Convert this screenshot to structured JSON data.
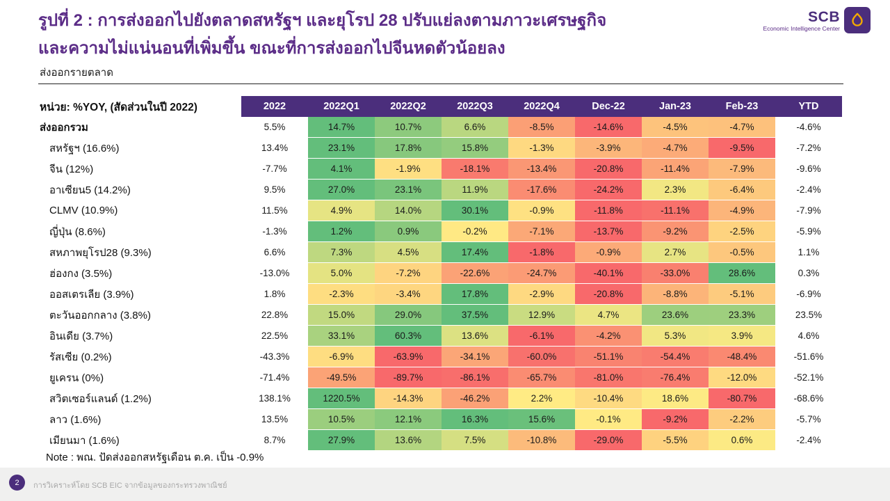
{
  "title": {
    "line1": "รูปที่ 2 : การส่งออกไปยังตลาดสหรัฐฯ และยุโรป 28 ปรับแย่ลงตามภาวะเศรษฐกิจ",
    "line2": "และความไม่แน่นอนที่เพิ่มขึ้น ขณะที่การส่งออกไปจีนหดตัวน้อยลง"
  },
  "logo": {
    "brand": "SCB",
    "tagline": "Economic Intelligence Center"
  },
  "subtitle": "ส่งออกรายตลาด",
  "unit_label": "หน่วย: %YOY, (สัดส่วนในปี 2022)",
  "note": "Note : พณ. ปัดส่งออกสหรัฐเดือน ต.ค. เป็น -0.9%",
  "footer": {
    "page_number": "2",
    "source": "การวิเคราะห์โดย SCB EIC จากข้อมูลของกระทรวงพาณิชย์"
  },
  "colors": {
    "accent_purple": "#5b2c87",
    "header_purple": "#4b2e7c",
    "heat_green": "#63be7b",
    "heat_yellow": "#ffeb84",
    "heat_red": "#f8696b",
    "gold": "#f2a900"
  },
  "chart_data": {
    "type": "heatmap",
    "title": "ส่งออกรายตลาด",
    "unit": "%YOY",
    "columns": [
      "2022",
      "2022Q1",
      "2022Q2",
      "2022Q3",
      "2022Q4",
      "Dec-22",
      "Jan-23",
      "Feb-23",
      "YTD"
    ],
    "heat_column_range": [
      1,
      7
    ],
    "color_scale": "per-row diverging, yellow at 0, green at row max positive, red at row min negative",
    "rows": [
      {
        "label": "ส่งออกรวม",
        "bold": true,
        "values": [
          5.5,
          14.7,
          10.7,
          6.6,
          -8.5,
          -14.6,
          -4.5,
          -4.7,
          -4.6
        ]
      },
      {
        "label": "สหรัฐฯ (16.6%)",
        "values": [
          13.4,
          23.1,
          17.8,
          15.8,
          -1.3,
          -3.9,
          -4.7,
          -9.5,
          -7.2
        ]
      },
      {
        "label": "จีน (12%)",
        "values": [
          -7.7,
          4.1,
          -1.9,
          -18.1,
          -13.4,
          -20.8,
          -11.4,
          -7.9,
          -9.6
        ]
      },
      {
        "label": "อาเซียน5 (14.2%)",
        "values": [
          9.5,
          27.0,
          23.1,
          11.9,
          -17.6,
          -24.2,
          2.3,
          -6.4,
          -2.4
        ]
      },
      {
        "label": "CLMV (10.9%)",
        "values": [
          11.5,
          4.9,
          14.0,
          30.1,
          -0.9,
          -11.8,
          -11.1,
          -4.9,
          -7.9
        ]
      },
      {
        "label": "ญี่ปุ่น (8.6%)",
        "values": [
          -1.3,
          1.2,
          0.9,
          -0.2,
          -7.1,
          -13.7,
          -9.2,
          -2.5,
          -5.9
        ]
      },
      {
        "label": "สหภาพยุโรป28 (9.3%)",
        "values": [
          6.6,
          7.3,
          4.5,
          17.4,
          -1.8,
          -0.9,
          2.7,
          -0.5,
          1.1
        ]
      },
      {
        "label": "ฮ่องกง (3.5%)",
        "values": [
          -13.0,
          5.0,
          -7.2,
          -22.6,
          -24.7,
          -40.1,
          -33.0,
          28.6,
          0.3
        ]
      },
      {
        "label": "ออสเตรเลีย (3.9%)",
        "values": [
          1.8,
          -2.3,
          -3.4,
          17.8,
          -2.9,
          -20.8,
          -8.8,
          -5.1,
          -6.9
        ]
      },
      {
        "label": "ตะวันออกกลาง (3.8%)",
        "values": [
          22.8,
          15.0,
          29.0,
          37.5,
          12.9,
          4.7,
          23.6,
          23.3,
          23.5
        ]
      },
      {
        "label": "อินเดีย (3.7%)",
        "values": [
          22.5,
          33.1,
          60.3,
          13.6,
          -6.1,
          -4.2,
          5.3,
          3.9,
          4.6
        ]
      },
      {
        "label": "รัสเซีย (0.2%)",
        "values": [
          -43.3,
          -6.9,
          -63.9,
          -34.1,
          -60.0,
          -51.1,
          -54.4,
          -48.4,
          -51.6
        ]
      },
      {
        "label": "ยูเครน (0%)",
        "values": [
          -71.4,
          -49.5,
          -89.7,
          -86.1,
          -65.7,
          -81.0,
          -76.4,
          -12.0,
          -52.1
        ]
      },
      {
        "label": "สวิตเซอร์แลนด์ (1.2%)",
        "values": [
          138.1,
          1220.5,
          -14.3,
          -46.2,
          2.2,
          -10.4,
          18.6,
          -80.7,
          -68.6
        ]
      },
      {
        "label": "ลาว (1.6%)",
        "values": [
          13.5,
          10.5,
          12.1,
          16.3,
          15.6,
          -0.1,
          -9.2,
          -2.2,
          -5.7
        ]
      },
      {
        "label": "เมียนมา (1.6%)",
        "values": [
          8.7,
          27.9,
          13.6,
          7.5,
          -10.8,
          -29.0,
          -5.5,
          0.6,
          -2.4
        ]
      }
    ]
  }
}
